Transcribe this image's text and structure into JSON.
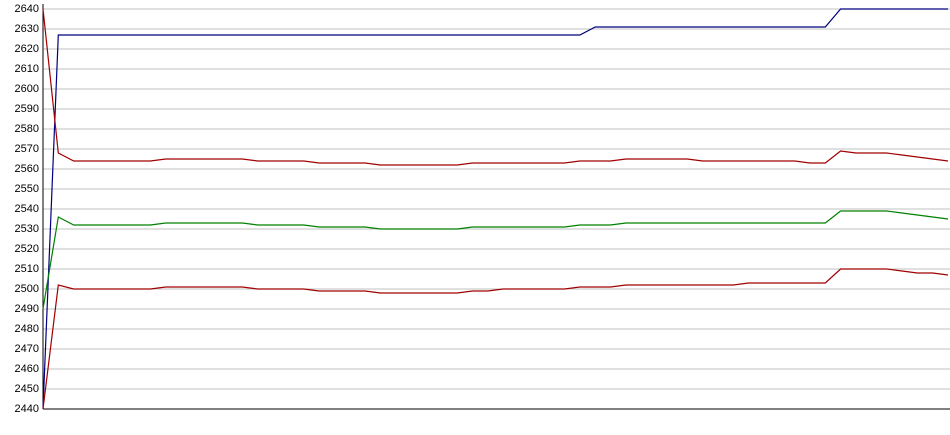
{
  "chart_data": {
    "type": "line",
    "categories": [
      null,
      null,
      null,
      null,
      null,
      null,
      null,
      null,
      null,
      null,
      null,
      null,
      null,
      null,
      null,
      null,
      null,
      null,
      null,
      null,
      null,
      null,
      null,
      null,
      null,
      null,
      null,
      null,
      null,
      null,
      null,
      null,
      null,
      null,
      null,
      null,
      null,
      null,
      null,
      null,
      null,
      null,
      null,
      null,
      null,
      null,
      null,
      null,
      null,
      null,
      null,
      null,
      null,
      null,
      null,
      null,
      null,
      null,
      null,
      null
    ],
    "series": [
      {
        "color": "#000080",
        "values": [
          2440,
          2627,
          2627,
          2627,
          2627,
          2627,
          2627,
          2627,
          2627,
          2627,
          2627,
          2627,
          2627,
          2627,
          2627,
          2627,
          2627,
          2627,
          2627,
          2627,
          2627,
          2627,
          2627,
          2627,
          2627,
          2627,
          2627,
          2627,
          2627,
          2627,
          2627,
          2627,
          2627,
          2627,
          2627,
          2627,
          2631,
          2631,
          2631,
          2631,
          2631,
          2631,
          2631,
          2631,
          2631,
          2631,
          2631,
          2631,
          2631,
          2631,
          2631,
          2631,
          2640,
          2640,
          2640,
          2640,
          2640,
          2640,
          2640,
          2640
        ]
      },
      {
        "color": "#a00000",
        "values": [
          2640,
          2568,
          2564,
          2564,
          2564,
          2564,
          2564,
          2564,
          2565,
          2565,
          2565,
          2565,
          2565,
          2565,
          2564,
          2564,
          2564,
          2564,
          2563,
          2563,
          2563,
          2563,
          2562,
          2562,
          2562,
          2562,
          2562,
          2562,
          2563,
          2563,
          2563,
          2563,
          2563,
          2563,
          2563,
          2564,
          2564,
          2564,
          2565,
          2565,
          2565,
          2565,
          2565,
          2564,
          2564,
          2564,
          2564,
          2564,
          2564,
          2564,
          2563,
          2563,
          2569,
          2568,
          2568,
          2568,
          2567,
          2566,
          2565,
          2564
        ]
      },
      {
        "color": "#008000",
        "values": [
          2490,
          2536,
          2532,
          2532,
          2532,
          2532,
          2532,
          2532,
          2533,
          2533,
          2533,
          2533,
          2533,
          2533,
          2532,
          2532,
          2532,
          2532,
          2531,
          2531,
          2531,
          2531,
          2530,
          2530,
          2530,
          2530,
          2530,
          2530,
          2531,
          2531,
          2531,
          2531,
          2531,
          2531,
          2531,
          2532,
          2532,
          2532,
          2533,
          2533,
          2533,
          2533,
          2533,
          2533,
          2533,
          2533,
          2533,
          2533,
          2533,
          2533,
          2533,
          2533,
          2539,
          2539,
          2539,
          2539,
          2538,
          2537,
          2536,
          2535
        ]
      },
      {
        "color": "#a00000",
        "values": [
          2440,
          2502,
          2500,
          2500,
          2500,
          2500,
          2500,
          2500,
          2501,
          2501,
          2501,
          2501,
          2501,
          2501,
          2500,
          2500,
          2500,
          2500,
          2499,
          2499,
          2499,
          2499,
          2498,
          2498,
          2498,
          2498,
          2498,
          2498,
          2499,
          2499,
          2500,
          2500,
          2500,
          2500,
          2500,
          2501,
          2501,
          2501,
          2502,
          2502,
          2502,
          2502,
          2502,
          2502,
          2502,
          2502,
          2503,
          2503,
          2503,
          2503,
          2503,
          2503,
          2510,
          2510,
          2510,
          2510,
          2509,
          2508,
          2508,
          2507
        ]
      }
    ],
    "ylim": [
      2440,
      2640
    ],
    "yticks": [
      2440,
      2450,
      2460,
      2470,
      2480,
      2490,
      2500,
      2510,
      2520,
      2530,
      2540,
      2550,
      2560,
      2570,
      2580,
      2590,
      2600,
      2610,
      2620,
      2630,
      2640
    ],
    "grid": true
  }
}
